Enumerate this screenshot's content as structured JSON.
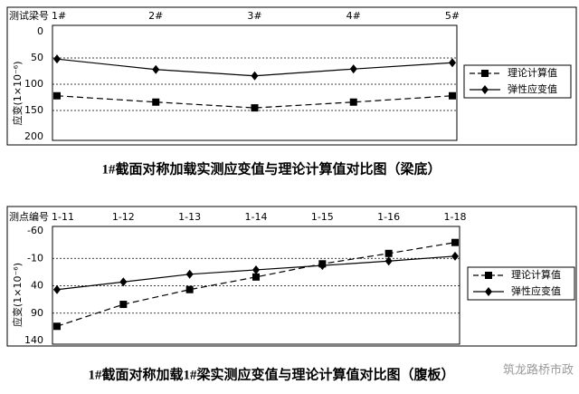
{
  "chart_data": [
    {
      "type": "line",
      "title": "1#截面对称加载实测应变值与理论计算值对比图（梁底）",
      "x_label": "测试梁号",
      "y_label": "应变(1×10⁻⁶)",
      "categories": [
        "1#",
        "2#",
        "3#",
        "4#",
        "5#"
      ],
      "series": [
        {
          "name": "理论计算值",
          "color": "#000000",
          "dash": true,
          "marker": "square",
          "values": [
            122,
            134,
            145,
            134,
            122
          ]
        },
        {
          "name": "弹性应变值",
          "color": "#000000",
          "dash": false,
          "marker": "diamond",
          "values": [
            52,
            72,
            84,
            71,
            59
          ]
        }
      ],
      "ylim": [
        0,
        200
      ],
      "yticks": [
        0,
        50,
        100,
        150,
        200
      ],
      "y_inverted": true,
      "grid": true,
      "legend": "right"
    },
    {
      "type": "line",
      "title": "1#截面对称加载1#梁实测应变值与理论计算值对比图（腹板）",
      "x_label": "测点编号",
      "y_label": "应变(1×10⁻⁶)",
      "categories": [
        "1-11",
        "1-12",
        "1-13",
        "1-14",
        "1-15",
        "1-16",
        "1-18"
      ],
      "series": [
        {
          "name": "理论计算值",
          "color": "#000000",
          "dash": true,
          "marker": "square",
          "values": [
            114,
            74,
            47,
            24,
            0,
            -19,
            -39
          ]
        },
        {
          "name": "弹性应变值",
          "color": "#000000",
          "dash": false,
          "marker": "diamond",
          "values": [
            47,
            33,
            19,
            11,
            3,
            -5,
            -14
          ]
        }
      ],
      "ylim": [
        -60,
        140
      ],
      "yticks": [
        -60,
        -10,
        40,
        90,
        140
      ],
      "y_inverted": true,
      "grid": true,
      "legend": "right"
    }
  ],
  "watermark": "筑龙路桥市政"
}
